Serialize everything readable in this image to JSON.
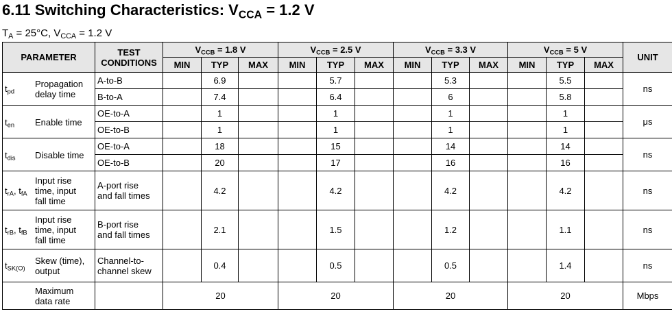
{
  "title": {
    "main": "6.11 Switching Characteristics: V",
    "sub": "CCA",
    "rest": " = 1.2 V"
  },
  "subtitle": {
    "t": "T",
    "t_sub": "A",
    "mid": " = 25°C, V",
    "v_sub": "CCA",
    "rest": " = 1.2 V"
  },
  "headers": {
    "parameter": "PARAMETER",
    "test1": "TEST",
    "test2": "CONDITIONS",
    "unit": "UNIT",
    "groups": [
      {
        "v": "V",
        "sub": "CCB",
        "rest": " = 1.8 V"
      },
      {
        "v": "V",
        "sub": "CCB",
        "rest": " = 2.5 V"
      },
      {
        "v": "V",
        "sub": "CCB",
        "rest": " = 3.3 V"
      },
      {
        "v": "V",
        "sub": "CCB",
        "rest": " = 5 V"
      }
    ],
    "min": "MIN",
    "typ": "TYP",
    "max": "MAX"
  },
  "params": [
    {
      "sym": "t",
      "sub": "pd",
      "desc1": "Propagation",
      "desc2": "delay time",
      "unit": "ns",
      "rows": [
        {
          "cond": "A-to-B",
          "typ": [
            "6.9",
            "5.7",
            "5.3",
            "5.5"
          ]
        },
        {
          "cond": "B-to-A",
          "typ": [
            "7.4",
            "6.4",
            "6",
            "5.8"
          ]
        }
      ]
    },
    {
      "sym": "t",
      "sub": "en",
      "desc1": "Enable time",
      "unit": "μs",
      "rows": [
        {
          "cond": "OE-to-A",
          "typ": [
            "1",
            "1",
            "1",
            "1"
          ]
        },
        {
          "cond": "OE-to-B",
          "typ": [
            "1",
            "1",
            "1",
            "1"
          ]
        }
      ]
    },
    {
      "sym": "t",
      "sub": "dis",
      "desc1": "Disable time",
      "unit": "ns",
      "rows": [
        {
          "cond": "OE-to-A",
          "typ": [
            "18",
            "15",
            "14",
            "14"
          ]
        },
        {
          "cond": "OE-to-B",
          "typ": [
            "20",
            "17",
            "16",
            "16"
          ]
        }
      ]
    },
    {
      "sym_a": "t",
      "sub_a": "rA",
      "sep": ", ",
      "sym_b": "t",
      "sub_b": "fA",
      "desc1": "Input rise",
      "desc2": "time, input",
      "desc3": "fall time",
      "cond1": "A-port rise",
      "cond2": "and fall times",
      "typ": [
        "4.2",
        "4.2",
        "4.2",
        "4.2"
      ],
      "unit": "ns"
    },
    {
      "sym_a": "t",
      "sub_a": "rB",
      "sep": ", ",
      "sym_b": "t",
      "sub_b": "fB",
      "desc1": "Input rise",
      "desc2": "time, input",
      "desc3": "fall time",
      "cond1": "B-port rise",
      "cond2": "and fall times",
      "typ": [
        "2.1",
        "1.5",
        "1.2",
        "1.1"
      ],
      "unit": "ns"
    },
    {
      "sym": "t",
      "sub": "SK(O)",
      "desc1": "Skew (time),",
      "desc2": "output",
      "cond1": "Channel-to-",
      "cond2": "channel skew",
      "typ": [
        "0.4",
        "0.5",
        "0.5",
        "1.4"
      ],
      "unit": "ns"
    },
    {
      "desc1": "Maximum",
      "desc2": "data rate",
      "typ": [
        "20",
        "20",
        "20",
        "20"
      ],
      "unit": "Mbps"
    }
  ]
}
